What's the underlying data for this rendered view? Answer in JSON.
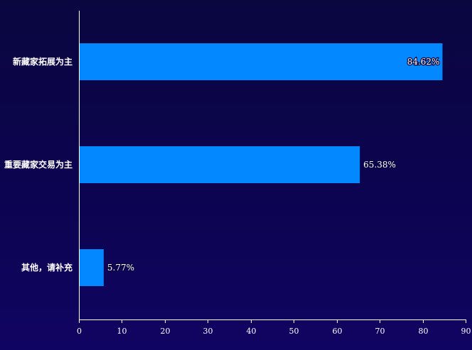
{
  "chart_data": {
    "type": "bar",
    "orientation": "horizontal",
    "categories": [
      "新藏家拓展为主",
      "重要藏家交易为主",
      "其他，请补充"
    ],
    "values": [
      84.62,
      65.38,
      5.77
    ],
    "value_labels": [
      "84.62%",
      "65.38%",
      "5.77%"
    ],
    "title": "",
    "xlabel": "",
    "ylabel": "",
    "xlim": [
      0,
      90
    ],
    "x_ticks": [
      "0",
      "10",
      "20",
      "30",
      "40",
      "50",
      "60",
      "70",
      "80",
      "90"
    ],
    "grid": false,
    "legend": "none",
    "colors": {
      "bar": "#0388ff",
      "background_top": "#0a0640",
      "background_bottom": "#100462",
      "text": "#ffffff"
    }
  }
}
